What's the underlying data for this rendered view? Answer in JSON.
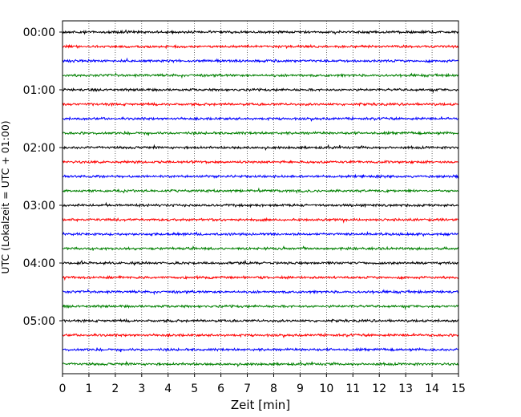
{
  "chart_data": {
    "type": "line",
    "title": "",
    "xlabel": "Zeit  [min]",
    "ylabel": "UTC (Lokalzeit = UTC + 01:00)",
    "xlim": [
      0,
      15
    ],
    "x_ticks": [
      "0",
      "1",
      "2",
      "3",
      "4",
      "5",
      "6",
      "7",
      "8",
      "9",
      "10",
      "11",
      "12",
      "13",
      "14",
      "15"
    ],
    "y_tick_labels": [
      "00:00",
      "01:00",
      "02:00",
      "03:00",
      "04:00",
      "05:00"
    ],
    "grid": "vertical dotted at each minute",
    "legend": "none",
    "trace_start_times": [
      "00:00",
      "00:15",
      "00:30",
      "00:45",
      "01:00",
      "01:15",
      "01:30",
      "01:45",
      "02:00",
      "02:15",
      "02:30",
      "02:45",
      "03:00",
      "03:15",
      "03:30",
      "03:45",
      "04:00",
      "04:15",
      "04:30",
      "04:45",
      "05:00",
      "05:15",
      "05:30",
      "05:45"
    ],
    "trace_colors": [
      "#000000",
      "#ff0000",
      "#0000ff",
      "#008000"
    ],
    "trace_baseline": 0
  }
}
